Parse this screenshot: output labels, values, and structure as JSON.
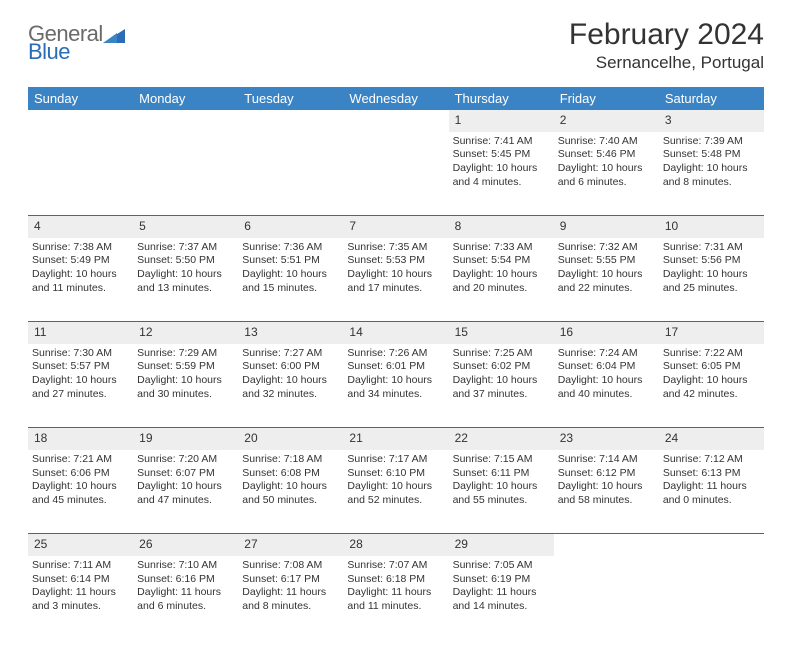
{
  "logo": {
    "general": "General",
    "blue": "Blue"
  },
  "title": "February 2024",
  "location": "Sernancelhe, Portugal",
  "colors": {
    "header_bg": "#3a84c6",
    "header_text": "#ffffff",
    "daynum_bg": "#eeeeee",
    "rule": "#2a6db5",
    "logo_gray": "#6a6a6a",
    "logo_blue": "#2a6db5",
    "text": "#333333",
    "background": "#ffffff"
  },
  "weekdays": [
    "Sunday",
    "Monday",
    "Tuesday",
    "Wednesday",
    "Thursday",
    "Friday",
    "Saturday"
  ],
  "weeks": [
    {
      "days": [
        null,
        null,
        null,
        null,
        {
          "n": "1",
          "sunrise": "7:41 AM",
          "sunset": "5:45 PM",
          "dl1": "Daylight: 10 hours",
          "dl2": "and 4 minutes."
        },
        {
          "n": "2",
          "sunrise": "7:40 AM",
          "sunset": "5:46 PM",
          "dl1": "Daylight: 10 hours",
          "dl2": "and 6 minutes."
        },
        {
          "n": "3",
          "sunrise": "7:39 AM",
          "sunset": "5:48 PM",
          "dl1": "Daylight: 10 hours",
          "dl2": "and 8 minutes."
        }
      ]
    },
    {
      "days": [
        {
          "n": "4",
          "sunrise": "7:38 AM",
          "sunset": "5:49 PM",
          "dl1": "Daylight: 10 hours",
          "dl2": "and 11 minutes."
        },
        {
          "n": "5",
          "sunrise": "7:37 AM",
          "sunset": "5:50 PM",
          "dl1": "Daylight: 10 hours",
          "dl2": "and 13 minutes."
        },
        {
          "n": "6",
          "sunrise": "7:36 AM",
          "sunset": "5:51 PM",
          "dl1": "Daylight: 10 hours",
          "dl2": "and 15 minutes."
        },
        {
          "n": "7",
          "sunrise": "7:35 AM",
          "sunset": "5:53 PM",
          "dl1": "Daylight: 10 hours",
          "dl2": "and 17 minutes."
        },
        {
          "n": "8",
          "sunrise": "7:33 AM",
          "sunset": "5:54 PM",
          "dl1": "Daylight: 10 hours",
          "dl2": "and 20 minutes."
        },
        {
          "n": "9",
          "sunrise": "7:32 AM",
          "sunset": "5:55 PM",
          "dl1": "Daylight: 10 hours",
          "dl2": "and 22 minutes."
        },
        {
          "n": "10",
          "sunrise": "7:31 AM",
          "sunset": "5:56 PM",
          "dl1": "Daylight: 10 hours",
          "dl2": "and 25 minutes."
        }
      ]
    },
    {
      "days": [
        {
          "n": "11",
          "sunrise": "7:30 AM",
          "sunset": "5:57 PM",
          "dl1": "Daylight: 10 hours",
          "dl2": "and 27 minutes."
        },
        {
          "n": "12",
          "sunrise": "7:29 AM",
          "sunset": "5:59 PM",
          "dl1": "Daylight: 10 hours",
          "dl2": "and 30 minutes."
        },
        {
          "n": "13",
          "sunrise": "7:27 AM",
          "sunset": "6:00 PM",
          "dl1": "Daylight: 10 hours",
          "dl2": "and 32 minutes."
        },
        {
          "n": "14",
          "sunrise": "7:26 AM",
          "sunset": "6:01 PM",
          "dl1": "Daylight: 10 hours",
          "dl2": "and 34 minutes."
        },
        {
          "n": "15",
          "sunrise": "7:25 AM",
          "sunset": "6:02 PM",
          "dl1": "Daylight: 10 hours",
          "dl2": "and 37 minutes."
        },
        {
          "n": "16",
          "sunrise": "7:24 AM",
          "sunset": "6:04 PM",
          "dl1": "Daylight: 10 hours",
          "dl2": "and 40 minutes."
        },
        {
          "n": "17",
          "sunrise": "7:22 AM",
          "sunset": "6:05 PM",
          "dl1": "Daylight: 10 hours",
          "dl2": "and 42 minutes."
        }
      ]
    },
    {
      "days": [
        {
          "n": "18",
          "sunrise": "7:21 AM",
          "sunset": "6:06 PM",
          "dl1": "Daylight: 10 hours",
          "dl2": "and 45 minutes."
        },
        {
          "n": "19",
          "sunrise": "7:20 AM",
          "sunset": "6:07 PM",
          "dl1": "Daylight: 10 hours",
          "dl2": "and 47 minutes."
        },
        {
          "n": "20",
          "sunrise": "7:18 AM",
          "sunset": "6:08 PM",
          "dl1": "Daylight: 10 hours",
          "dl2": "and 50 minutes."
        },
        {
          "n": "21",
          "sunrise": "7:17 AM",
          "sunset": "6:10 PM",
          "dl1": "Daylight: 10 hours",
          "dl2": "and 52 minutes."
        },
        {
          "n": "22",
          "sunrise": "7:15 AM",
          "sunset": "6:11 PM",
          "dl1": "Daylight: 10 hours",
          "dl2": "and 55 minutes."
        },
        {
          "n": "23",
          "sunrise": "7:14 AM",
          "sunset": "6:12 PM",
          "dl1": "Daylight: 10 hours",
          "dl2": "and 58 minutes."
        },
        {
          "n": "24",
          "sunrise": "7:12 AM",
          "sunset": "6:13 PM",
          "dl1": "Daylight: 11 hours",
          "dl2": "and 0 minutes."
        }
      ]
    },
    {
      "days": [
        {
          "n": "25",
          "sunrise": "7:11 AM",
          "sunset": "6:14 PM",
          "dl1": "Daylight: 11 hours",
          "dl2": "and 3 minutes."
        },
        {
          "n": "26",
          "sunrise": "7:10 AM",
          "sunset": "6:16 PM",
          "dl1": "Daylight: 11 hours",
          "dl2": "and 6 minutes."
        },
        {
          "n": "27",
          "sunrise": "7:08 AM",
          "sunset": "6:17 PM",
          "dl1": "Daylight: 11 hours",
          "dl2": "and 8 minutes."
        },
        {
          "n": "28",
          "sunrise": "7:07 AM",
          "sunset": "6:18 PM",
          "dl1": "Daylight: 11 hours",
          "dl2": "and 11 minutes."
        },
        {
          "n": "29",
          "sunrise": "7:05 AM",
          "sunset": "6:19 PM",
          "dl1": "Daylight: 11 hours",
          "dl2": "and 14 minutes."
        },
        null,
        null
      ]
    }
  ]
}
